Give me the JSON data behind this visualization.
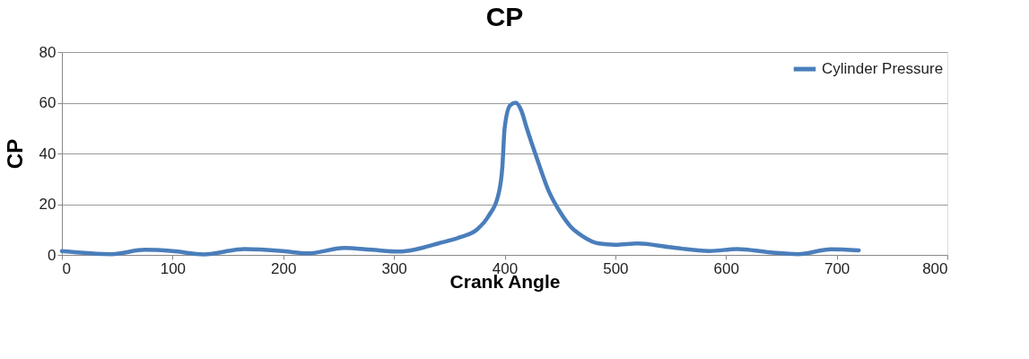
{
  "chart_data": {
    "type": "line",
    "title": "CP",
    "xlabel": "Crank Angle",
    "ylabel": "CP",
    "x": [
      0,
      45,
      75,
      100,
      128,
      165,
      200,
      222,
      255,
      280,
      305,
      320,
      340,
      360,
      375,
      385,
      395,
      398,
      400,
      405,
      410,
      415,
      420,
      430,
      440,
      450,
      460,
      470,
      485,
      500,
      520,
      550,
      585,
      610,
      640,
      665,
      695,
      720
    ],
    "series": [
      {
        "name": "Cylinder Pressure",
        "color": "#4a7ebb",
        "values": [
          1.5,
          0.3,
          2,
          1.5,
          0.2,
          2.3,
          1.5,
          0.6,
          2.7,
          2,
          1.3,
          2.2,
          4.5,
          7,
          10,
          15,
          25,
          35,
          50,
          59,
          60,
          57,
          50,
          37,
          25,
          17,
          11,
          7.5,
          4.5,
          4,
          4.5,
          3,
          1.5,
          2.3,
          1,
          0.3,
          2.2,
          1.8
        ]
      }
    ],
    "xlim": [
      0,
      800
    ],
    "xticks": [
      0,
      100,
      200,
      300,
      400,
      500,
      600,
      700,
      800
    ],
    "ylim": [
      0,
      80
    ],
    "yticks": [
      0,
      20,
      40,
      60,
      80
    ],
    "grid": "y",
    "legend": "top right",
    "marker": "none",
    "line_style": "solid"
  }
}
